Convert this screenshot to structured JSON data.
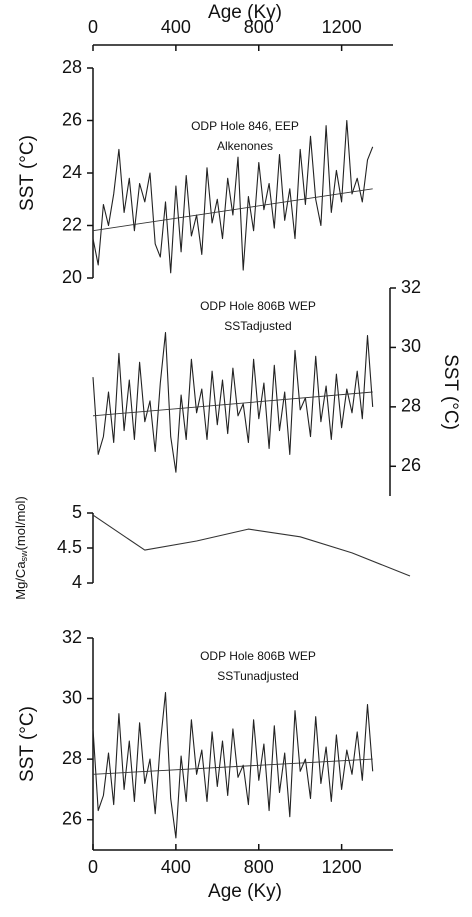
{
  "chart_data": [
    {
      "type": "line",
      "title": "ODP Hole 846, EEP",
      "subtitle": "Alkenones",
      "ylabel": "SST (°C)",
      "yaxis_side": "left",
      "xlabel": "Age (Ky)",
      "xaxis_side": "top",
      "xlim": [
        0,
        1530
      ],
      "xticks": [
        0,
        400,
        800,
        1200
      ],
      "ylim": [
        20,
        28
      ],
      "yticks": [
        20,
        22,
        24,
        26,
        28
      ],
      "x": [
        0,
        25,
        50,
        75,
        100,
        125,
        150,
        175,
        200,
        225,
        250,
        275,
        300,
        325,
        350,
        375,
        400,
        425,
        450,
        475,
        500,
        525,
        550,
        575,
        600,
        625,
        650,
        675,
        700,
        725,
        750,
        775,
        800,
        825,
        850,
        875,
        900,
        925,
        950,
        975,
        1000,
        1025,
        1050,
        1075,
        1100,
        1125,
        1150,
        1175,
        1200,
        1225,
        1250,
        1275,
        1300,
        1325,
        1350
      ],
      "series": [
        {
          "color": "#222222",
          "values": [
            21.5,
            20.5,
            22.8,
            22.0,
            23.2,
            24.9,
            22.5,
            23.8,
            21.8,
            23.6,
            22.9,
            24.0,
            21.3,
            20.8,
            22.9,
            20.2,
            23.5,
            21.0,
            23.9,
            21.6,
            22.4,
            20.9,
            24.2,
            22.1,
            23.0,
            21.5,
            23.8,
            22.4,
            24.6,
            20.3,
            23.1,
            21.8,
            24.4,
            22.6,
            23.6,
            21.9,
            24.7,
            22.2,
            23.4,
            21.5,
            24.9,
            22.8,
            25.4,
            23.0,
            22.0,
            25.8,
            22.5,
            24.1,
            22.9,
            26.0,
            23.2,
            23.8,
            22.9,
            24.5,
            25.0
          ]
        },
        {
          "color": "#333333",
          "x": [
            0,
            1350
          ],
          "values": [
            21.8,
            23.4
          ]
        }
      ]
    },
    {
      "type": "line",
      "title": "ODP Hole 806B WEP",
      "subtitle": "SSTadjusted",
      "ylabel": "SST (°C)",
      "yaxis_side": "right",
      "xlim": [
        0,
        1530
      ],
      "ylim": [
        25,
        32
      ],
      "yticks": [
        26,
        28,
        30,
        32
      ],
      "x": [
        0,
        25,
        50,
        75,
        100,
        125,
        150,
        175,
        200,
        225,
        250,
        275,
        300,
        325,
        350,
        375,
        400,
        425,
        450,
        475,
        500,
        525,
        550,
        575,
        600,
        625,
        650,
        675,
        700,
        725,
        750,
        775,
        800,
        825,
        850,
        875,
        900,
        925,
        950,
        975,
        1000,
        1025,
        1050,
        1075,
        1100,
        1125,
        1150,
        1175,
        1200,
        1225,
        1250,
        1275,
        1300,
        1325,
        1350
      ],
      "series": [
        {
          "color": "#222222",
          "values": [
            29.0,
            26.4,
            27.0,
            28.5,
            26.8,
            29.8,
            27.2,
            28.9,
            26.9,
            29.5,
            27.5,
            28.2,
            26.5,
            28.8,
            30.5,
            27.0,
            25.8,
            28.4,
            26.9,
            29.6,
            27.8,
            28.6,
            26.9,
            29.2,
            27.4,
            28.9,
            27.1,
            29.3,
            27.7,
            28.1,
            26.8,
            29.6,
            27.6,
            28.8,
            26.6,
            29.4,
            27.2,
            28.5,
            26.4,
            29.9,
            27.9,
            28.3,
            27.0,
            29.7,
            27.5,
            28.7,
            26.9,
            29.1,
            27.3,
            28.6,
            27.8,
            29.2,
            27.6,
            30.4,
            28.0
          ]
        },
        {
          "color": "#333333",
          "x": [
            0,
            1350
          ],
          "values": [
            27.7,
            28.5
          ]
        }
      ]
    },
    {
      "type": "line",
      "ylabel": {
        "text": "Mg/Ca",
        "subscript": "sw",
        "suffix": "(mol/mol)"
      },
      "yaxis_side": "left",
      "xlim": [
        0,
        1530
      ],
      "ylim": [
        4,
        5
      ],
      "yticks": [
        4,
        4.5,
        5
      ],
      "x": [
        0,
        250,
        500,
        750,
        1000,
        1250,
        1530
      ],
      "series": [
        {
          "color": "#333333",
          "values": [
            4.97,
            4.47,
            4.6,
            4.77,
            4.66,
            4.43,
            4.1
          ]
        }
      ]
    },
    {
      "type": "line",
      "title": "ODP Hole 806B WEP",
      "subtitle": "SSTunadjusted",
      "ylabel": "SST (°C)",
      "yaxis_side": "left",
      "xlabel": "Age (Ky)",
      "xaxis_side": "bottom",
      "xlim": [
        0,
        1530
      ],
      "xticks": [
        0,
        400,
        800,
        1200
      ],
      "ylim": [
        25,
        32
      ],
      "yticks": [
        26,
        28,
        30,
        32
      ],
      "x": [
        0,
        25,
        50,
        75,
        100,
        125,
        150,
        175,
        200,
        225,
        250,
        275,
        300,
        325,
        350,
        375,
        400,
        425,
        450,
        475,
        500,
        525,
        550,
        575,
        600,
        625,
        650,
        675,
        700,
        725,
        750,
        775,
        800,
        825,
        850,
        875,
        900,
        925,
        950,
        975,
        1000,
        1025,
        1050,
        1075,
        1100,
        1125,
        1150,
        1175,
        1200,
        1225,
        1250,
        1275,
        1300,
        1325,
        1350
      ],
      "series": [
        {
          "color": "#222222",
          "values": [
            29.0,
            26.3,
            26.8,
            28.2,
            26.5,
            29.5,
            27.0,
            28.6,
            26.6,
            29.2,
            27.2,
            28.0,
            26.2,
            28.5,
            30.2,
            26.7,
            25.4,
            28.1,
            26.6,
            29.3,
            27.5,
            28.3,
            26.6,
            28.9,
            27.1,
            28.6,
            26.8,
            29.0,
            27.4,
            27.8,
            26.5,
            29.3,
            27.3,
            28.5,
            26.3,
            29.1,
            26.9,
            28.2,
            26.1,
            29.6,
            27.6,
            28.0,
            26.7,
            29.4,
            27.2,
            28.4,
            26.6,
            28.8,
            27.0,
            28.3,
            27.5,
            28.9,
            27.3,
            29.8,
            27.6
          ]
        },
        {
          "color": "#333333",
          "x": [
            0,
            1350
          ],
          "values": [
            27.5,
            28.0
          ]
        }
      ]
    }
  ]
}
